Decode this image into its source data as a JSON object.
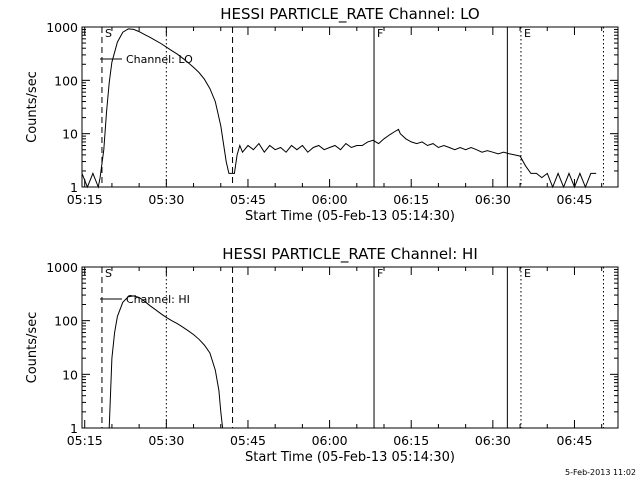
{
  "chart_data": [
    {
      "type": "line",
      "title": "HESSI PARTICLE_RATE Channel: LO",
      "xlabel": "Start Time (05-Feb-13 05:14:30)",
      "ylabel": "Counts/sec",
      "yscale": "log",
      "ylim": [
        1,
        1000
      ],
      "xlim": [
        "05:14:30",
        "06:53:00"
      ],
      "xticks": [
        "05:15",
        "05:30",
        "05:45",
        "06:00",
        "06:15",
        "06:30",
        "06:45"
      ],
      "yticks": [
        "1",
        "10",
        "100",
        "1000"
      ],
      "grid": false,
      "legend_position": "top-left",
      "series": [
        {
          "name": "Channel: LO",
          "x": [
            "05:14:30",
            "05:15:30",
            "05:16:30",
            "05:17:30",
            "05:17:50",
            "05:18:30",
            "05:19:00",
            "05:19:30",
            "05:20:00",
            "05:21:00",
            "05:22:00",
            "05:23:00",
            "05:24:00",
            "05:25:00",
            "05:26:00",
            "05:27:00",
            "05:28:00",
            "05:29:00",
            "05:30:00",
            "05:31:00",
            "05:32:00",
            "05:33:00",
            "05:34:00",
            "05:35:00",
            "05:36:00",
            "05:37:00",
            "05:38:00",
            "05:39:00",
            "05:40:00",
            "05:41:00",
            "05:41:30",
            "05:42:00",
            "05:42:30",
            "05:43:00",
            "05:43:30",
            "05:44:00",
            "05:45:00",
            "05:46:00",
            "05:47:00",
            "05:48:00",
            "05:49:00",
            "05:50:00",
            "05:51:00",
            "05:52:00",
            "05:53:00",
            "05:54:00",
            "05:55:00",
            "05:56:00",
            "05:57:00",
            "05:58:00",
            "05:59:00",
            "06:00:00",
            "06:01:00",
            "06:02:00",
            "06:03:00",
            "06:04:00",
            "06:05:00",
            "06:06:00",
            "06:07:00",
            "06:08:00",
            "06:09:00",
            "06:10:00",
            "06:11:00",
            "06:12:00",
            "06:12:40",
            "06:13:00",
            "06:14:00",
            "06:15:00",
            "06:16:00",
            "06:17:00",
            "06:18:00",
            "06:19:00",
            "06:20:00",
            "06:21:00",
            "06:22:00",
            "06:23:00",
            "06:24:00",
            "06:25:00",
            "06:26:00",
            "06:27:00",
            "06:28:00",
            "06:29:00",
            "06:30:00",
            "06:31:00",
            "06:32:00",
            "06:33:00",
            "06:34:00",
            "06:35:00",
            "06:36:00",
            "06:37:00",
            "06:38:00",
            "06:39:00",
            "06:40:00",
            "06:41:00",
            "06:42:00",
            "06:43:00",
            "06:44:00",
            "06:45:00",
            "06:46:00",
            "06:47:00",
            "06:48:00",
            "06:49:00"
          ],
          "y": [
            1.8,
            1,
            1.8,
            1,
            1.5,
            5,
            25,
            90,
            220,
            520,
            800,
            920,
            900,
            820,
            720,
            640,
            560,
            490,
            420,
            360,
            310,
            260,
            215,
            175,
            140,
            105,
            70,
            40,
            14,
            3,
            1.8,
            1.8,
            1.8,
            4,
            6,
            4.5,
            6,
            5,
            6.5,
            4.5,
            6,
            5,
            5.5,
            4.5,
            6,
            5,
            6,
            4.5,
            5.5,
            6,
            5,
            5.5,
            6,
            5,
            6.5,
            5.5,
            6,
            6,
            7,
            7.5,
            6.5,
            8,
            9.5,
            11,
            12,
            10,
            8,
            7,
            6.5,
            7,
            6,
            6.5,
            5.5,
            6,
            5.5,
            5,
            5.5,
            5,
            5.5,
            5,
            4.5,
            4.8,
            4.5,
            4.2,
            4.5,
            4.2,
            4,
            3.8,
            2.5,
            1.8,
            1.8,
            1.5,
            1.8,
            1,
            1.8,
            1,
            1.8,
            1,
            1.8,
            1,
            1.8,
            1.8
          ]
        }
      ],
      "annotations": [
        "S",
        "F",
        "E"
      ]
    },
    {
      "type": "line",
      "title": "HESSI PARTICLE_RATE Channel: HI",
      "xlabel": "Start Time (05-Feb-13 05:14:30)",
      "ylabel": "Counts/sec",
      "yscale": "log",
      "ylim": [
        1,
        1000
      ],
      "xlim": [
        "05:14:30",
        "06:53:00"
      ],
      "xticks": [
        "05:15",
        "05:30",
        "05:45",
        "06:00",
        "06:15",
        "06:30",
        "06:45"
      ],
      "yticks": [
        "1",
        "10",
        "100",
        "1000"
      ],
      "grid": false,
      "legend_position": "top-left",
      "series": [
        {
          "name": "Channel: HI",
          "x": [
            "05:19:30",
            "05:20:00",
            "05:20:30",
            "05:21:00",
            "05:22:00",
            "05:23:00",
            "05:24:00",
            "05:25:00",
            "05:26:00",
            "05:27:00",
            "05:28:00",
            "05:29:00",
            "05:30:00",
            "05:31:00",
            "05:32:00",
            "05:33:00",
            "05:34:00",
            "05:35:00",
            "05:36:00",
            "05:37:00",
            "05:38:00",
            "05:39:00",
            "05:39:40",
            "05:40:00",
            "05:40:20"
          ],
          "y": [
            1,
            20,
            60,
            120,
            220,
            280,
            290,
            270,
            230,
            190,
            160,
            135,
            115,
            100,
            88,
            76,
            65,
            55,
            45,
            35,
            25,
            12,
            5,
            2,
            1
          ]
        }
      ],
      "annotations": [
        "S",
        "F",
        "E"
      ]
    }
  ],
  "markers": [
    {
      "label": "S",
      "time": "05:18:10",
      "style": "dashed"
    },
    {
      "label": "",
      "time": "05:42:10",
      "style": "dashed"
    },
    {
      "label": "",
      "time": "05:30:00",
      "style": "dotted"
    },
    {
      "label": "F",
      "time": "06:08:10",
      "style": "solid"
    },
    {
      "label": "",
      "time": "06:32:40",
      "style": "solid"
    },
    {
      "label": "E",
      "time": "06:35:10",
      "style": "dotted"
    },
    {
      "label": "",
      "time": "06:50:20",
      "style": "dotted"
    }
  ],
  "footer": {
    "timestamp": "5-Feb-2013 11:02"
  }
}
